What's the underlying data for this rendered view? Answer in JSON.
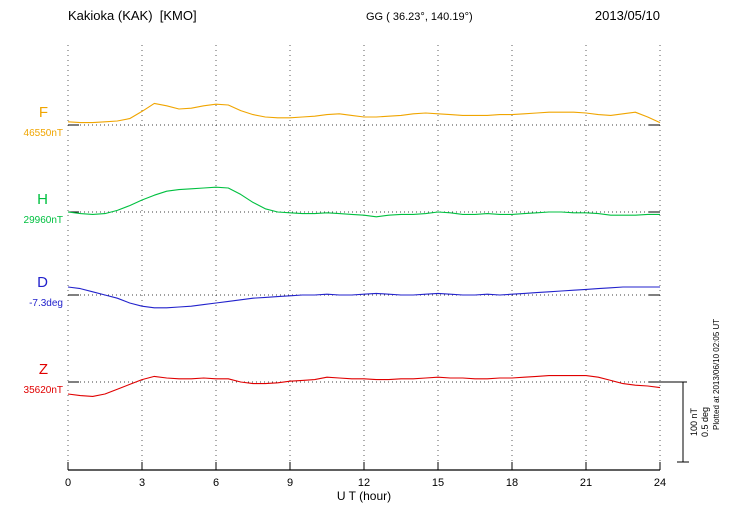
{
  "header": {
    "station": "Kakioka (KAK)  [KMO]",
    "coords": "GG ( 36.23°, 140.19°)",
    "date": "2013/05/10"
  },
  "xaxis": {
    "label": "U T (hour)",
    "ticks": [
      0,
      3,
      6,
      9,
      12,
      15,
      18,
      21,
      24
    ],
    "min": 0,
    "max": 24
  },
  "scalebar": {
    "nt_label": "100 nT",
    "deg_label": "0.5 deg",
    "nt_span": 100,
    "deg_span": 0.5
  },
  "footer_note": "Plotted at 2013/06/10 02:05 UT",
  "chart_data": {
    "type": "line",
    "title": "Kakioka (KAK) [KMO] magnetogram",
    "xlabel": "U T (hour)",
    "x_start": 0,
    "x_step_hours": 0.5,
    "x_range": [
      0,
      24
    ],
    "grid": "vertical-dotted",
    "legend_position": "left",
    "series": [
      {
        "name": "F",
        "unit": "nT",
        "baseline_value": 46550,
        "baseline_label": "46550nT",
        "color": "#f0a500",
        "offsets": [
          4,
          3,
          3,
          4,
          5,
          8,
          17,
          27,
          24,
          20,
          21,
          24,
          26,
          25,
          18,
          13,
          10,
          9,
          9,
          10,
          11,
          13,
          14,
          12,
          10,
          10,
          11,
          12,
          14,
          15,
          14,
          13,
          12,
          12,
          12,
          13,
          13,
          14,
          15,
          16,
          16,
          16,
          15,
          13,
          12,
          14,
          16,
          10,
          3
        ]
      },
      {
        "name": "H",
        "unit": "nT",
        "baseline_value": 29960,
        "baseline_label": "29960nT",
        "color": "#00c040",
        "offsets": [
          0,
          -2,
          -3,
          -2,
          2,
          8,
          15,
          21,
          26,
          28,
          29,
          30,
          31,
          30,
          22,
          12,
          4,
          0,
          -1,
          -2,
          -2,
          -1,
          -2,
          -3,
          -4,
          -6,
          -4,
          -3,
          -3,
          -2,
          0,
          -1,
          -3,
          -3,
          -2,
          -3,
          -3,
          -2,
          -1,
          0,
          0,
          -1,
          -1,
          -2,
          -4,
          -4,
          -4,
          -3,
          -3
        ]
      },
      {
        "name": "D",
        "unit": "deg",
        "baseline_value": -7.3,
        "baseline_label": "-7.3deg",
        "color": "#2222cc",
        "offsets": [
          0.05,
          0.04,
          0.02,
          0,
          -0.02,
          -0.05,
          -0.07,
          -0.08,
          -0.08,
          -0.075,
          -0.07,
          -0.06,
          -0.05,
          -0.04,
          -0.03,
          -0.02,
          -0.015,
          -0.01,
          -0.005,
          0,
          0,
          0.005,
          0,
          0,
          0.005,
          0.01,
          0.005,
          0,
          0,
          0.005,
          0.01,
          0.005,
          0,
          0,
          0.005,
          0,
          0.005,
          0.01,
          0.015,
          0.02,
          0.025,
          0.03,
          0.035,
          0.04,
          0.045,
          0.05,
          0.05,
          0.05,
          0.05
        ]
      },
      {
        "name": "Z",
        "unit": "nT",
        "baseline_value": 35620,
        "baseline_label": "35620nT",
        "color": "#e00000",
        "offsets": [
          -15,
          -17,
          -18,
          -15,
          -9,
          -3,
          3,
          7,
          5,
          4,
          4,
          5,
          4,
          4,
          0,
          -2,
          -2,
          -1,
          1,
          2,
          3,
          6,
          5,
          4,
          4,
          3,
          3,
          4,
          4,
          5,
          6,
          5,
          5,
          4,
          4,
          5,
          5,
          6,
          7,
          8,
          8,
          8,
          8,
          6,
          2,
          -2,
          -4,
          -5,
          -7
        ]
      }
    ]
  }
}
